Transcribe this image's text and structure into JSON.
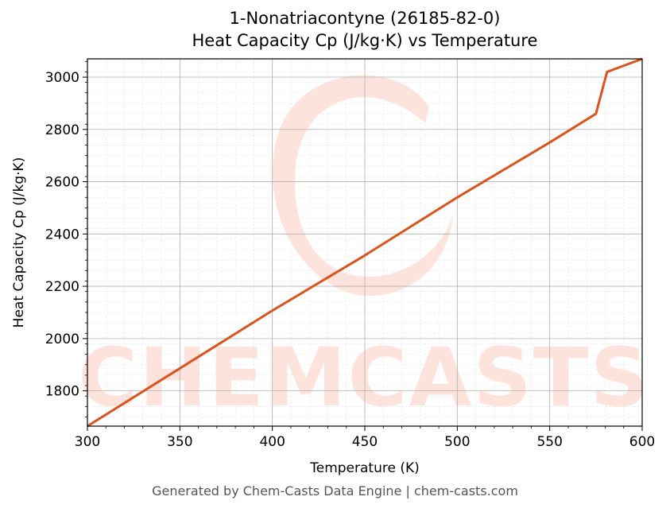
{
  "chart_data": {
    "type": "line",
    "title": "1-Nonatriacontyne (26185-82-0)",
    "subtitle": "Heat Capacity Cp (J/kg·K) vs Temperature",
    "xlabel": "Temperature (K)",
    "ylabel": "Heat Capacity Cp (J/kg·K)",
    "xlim": [
      300,
      600
    ],
    "ylim": [
      1665,
      3070
    ],
    "xticks": [
      300,
      350,
      400,
      450,
      500,
      550,
      600
    ],
    "yticks": [
      1800,
      2000,
      2200,
      2400,
      2600,
      2800,
      3000
    ],
    "grid": true,
    "series": [
      {
        "color": "#d9541e",
        "x": [
          300,
          350,
          400,
          450,
          500,
          550,
          575,
          581,
          600
        ],
        "y": [
          1665,
          1886,
          2107,
          2318,
          2540,
          2750,
          2860,
          3020,
          3070
        ]
      }
    ]
  },
  "watermark": {
    "text": "CHEMCASTS",
    "color": "#fde3dc"
  },
  "footer": "Generated by Chem-Casts Data Engine | chem-casts.com"
}
